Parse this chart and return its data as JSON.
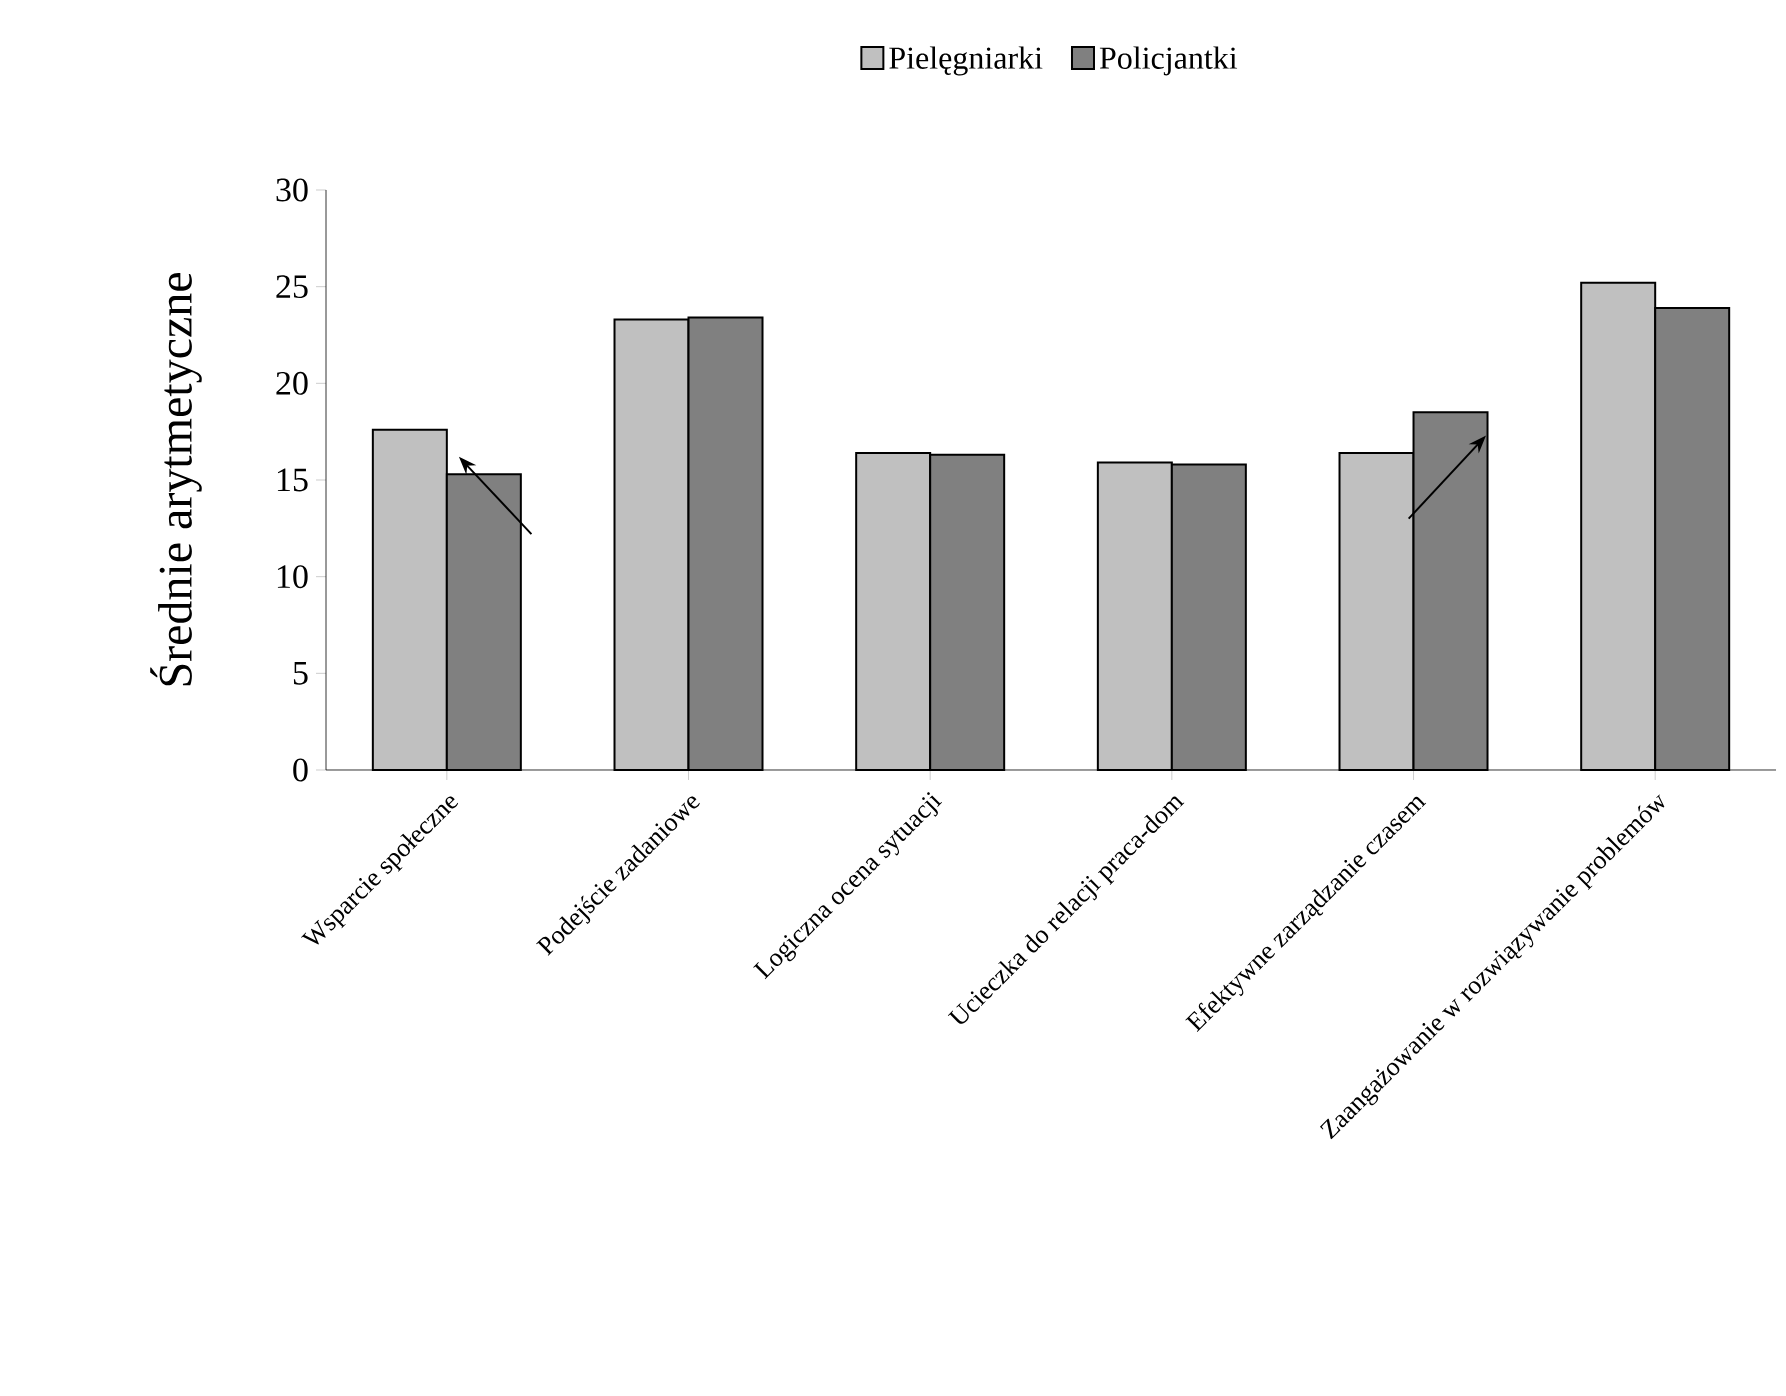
{
  "chart_data": {
    "type": "bar",
    "ylabel": "Średnie arytmetyczne",
    "categories": [
      "Wsparcie społeczne",
      "Podejście zadaniowe",
      "Logiczna ocena sytuacji",
      "Ucieczka do relacji praca-dom",
      "Efektywne zarządzanie czasem",
      "Zaangażowanie w rozwiązywanie problemów"
    ],
    "series": [
      {
        "name": "Pielęgniarki",
        "color": "#c0c0c0",
        "values": [
          17.6,
          23.3,
          16.4,
          15.9,
          16.4,
          25.2
        ]
      },
      {
        "name": "Policjantki",
        "color": "#808080",
        "values": [
          15.3,
          23.4,
          16.3,
          15.8,
          18.5,
          23.9
        ]
      }
    ],
    "ylim": [
      0,
      30
    ],
    "yticks": [
      0,
      5,
      10,
      15,
      20,
      25,
      30
    ],
    "legend": "top",
    "grid": false
  }
}
